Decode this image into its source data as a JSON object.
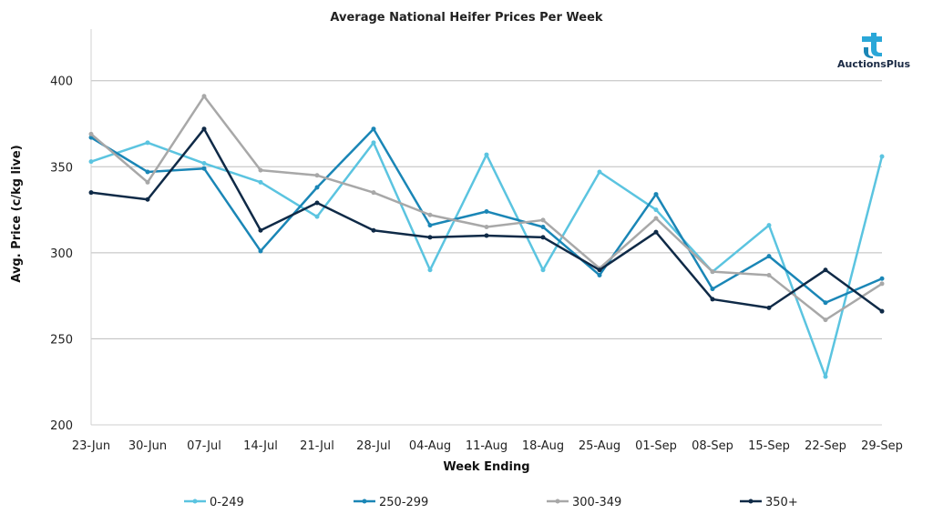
{
  "chart_data": {
    "type": "line",
    "title": "Average National Heifer Prices Per Week",
    "xlabel": "Week Ending",
    "ylabel": "Avg. Price (c/kg live)",
    "ylim": [
      200,
      430
    ],
    "yticks": [
      200,
      250,
      300,
      350,
      400
    ],
    "grid": true,
    "legend_position": "bottom",
    "categories": [
      "23-Jun",
      "30-Jun",
      "07-Jul",
      "14-Jul",
      "21-Jul",
      "28-Jul",
      "04-Aug",
      "11-Aug",
      "18-Aug",
      "25-Aug",
      "01-Sep",
      "08-Sep",
      "15-Sep",
      "22-Sep",
      "29-Sep"
    ],
    "series": [
      {
        "name": "0-249",
        "color": "#5bc4e0",
        "values": [
          353,
          364,
          352,
          341,
          321,
          364,
          290,
          357,
          290,
          347,
          325,
          289,
          316,
          228,
          356
        ]
      },
      {
        "name": "250-299",
        "color": "#1a86b6",
        "values": [
          367,
          347,
          349,
          301,
          338,
          372,
          316,
          324,
          315,
          287,
          334,
          279,
          298,
          271,
          285
        ]
      },
      {
        "name": "300-349",
        "color": "#a8a8a8",
        "values": [
          369,
          341,
          391,
          348,
          345,
          335,
          322,
          315,
          319,
          291,
          320,
          289,
          287,
          261,
          282
        ]
      },
      {
        "name": "350+",
        "color": "#0f2a47",
        "values": [
          335,
          331,
          372,
          313,
          329,
          313,
          309,
          310,
          309,
          290,
          312,
          273,
          268,
          290,
          266
        ]
      }
    ]
  },
  "logo": {
    "text": "AuctionsPlus",
    "icon": "auctionsplus-logo-icon"
  }
}
